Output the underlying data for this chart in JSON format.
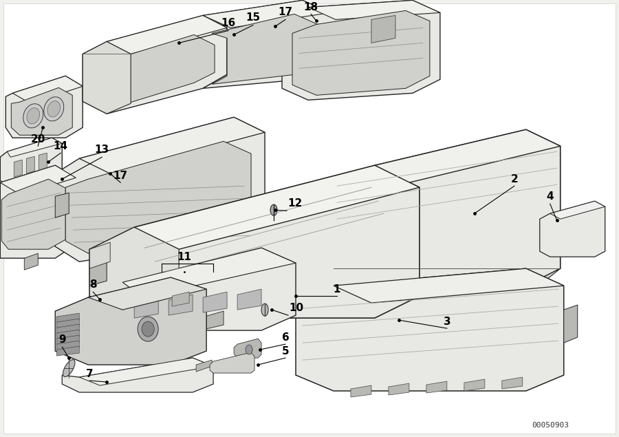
{
  "background_color": "#f0f0ec",
  "diagram_bg": "#ffffff",
  "part_number_code": "00050903",
  "figsize": [
    9.0,
    6.35
  ],
  "dpi": 100,
  "label_color": "#000000",
  "outline_color": "#222222",
  "fill_light": "#e8e8e4",
  "fill_mid": "#d0d0cc",
  "fill_dark": "#b8b8b4",
  "lw_main": 1.0,
  "lw_detail": 0.6,
  "label_fs": 11
}
